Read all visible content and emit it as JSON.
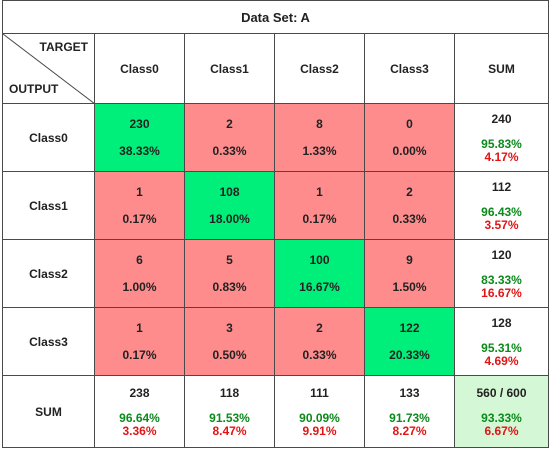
{
  "chart_data": {
    "type": "table",
    "title": "Data Set: A",
    "corner": {
      "target_label": "TARGET",
      "output_label": "OUTPUT"
    },
    "columns": [
      "Class0",
      "Class1",
      "Class2",
      "Class3",
      "SUM"
    ],
    "rows": [
      {
        "label": "Class0",
        "cells": [
          {
            "count": "230",
            "pct": "38.33%"
          },
          {
            "count": "2",
            "pct": "0.33%"
          },
          {
            "count": "8",
            "pct": "1.33%"
          },
          {
            "count": "0",
            "pct": "0.00%"
          }
        ],
        "sum": {
          "count": "240",
          "correct": "95.83%",
          "error": "4.17%"
        }
      },
      {
        "label": "Class1",
        "cells": [
          {
            "count": "1",
            "pct": "0.17%"
          },
          {
            "count": "108",
            "pct": "18.00%"
          },
          {
            "count": "1",
            "pct": "0.17%"
          },
          {
            "count": "2",
            "pct": "0.33%"
          }
        ],
        "sum": {
          "count": "112",
          "correct": "96.43%",
          "error": "3.57%"
        }
      },
      {
        "label": "Class2",
        "cells": [
          {
            "count": "6",
            "pct": "1.00%"
          },
          {
            "count": "5",
            "pct": "0.83%"
          },
          {
            "count": "100",
            "pct": "16.67%"
          },
          {
            "count": "9",
            "pct": "1.50%"
          }
        ],
        "sum": {
          "count": "120",
          "correct": "83.33%",
          "error": "16.67%"
        }
      },
      {
        "label": "Class3",
        "cells": [
          {
            "count": "1",
            "pct": "0.17%"
          },
          {
            "count": "3",
            "pct": "0.50%"
          },
          {
            "count": "2",
            "pct": "0.33%"
          },
          {
            "count": "122",
            "pct": "20.33%"
          }
        ],
        "sum": {
          "count": "128",
          "correct": "95.31%",
          "error": "4.69%"
        }
      }
    ],
    "sum_row": {
      "label": "SUM",
      "cells": [
        {
          "count": "238",
          "correct": "96.64%",
          "error": "3.36%"
        },
        {
          "count": "118",
          "correct": "91.53%",
          "error": "8.47%"
        },
        {
          "count": "111",
          "correct": "90.09%",
          "error": "9.91%"
        },
        {
          "count": "133",
          "correct": "91.73%",
          "error": "8.27%"
        }
      ],
      "total": {
        "count": "560 / 600",
        "correct": "93.33%",
        "error": "6.67%"
      }
    }
  },
  "colors": {
    "diagonal": "#00ee7a",
    "off_diagonal": "#fe8c8c",
    "total_cell": "#d4f7d6",
    "correct_text": "#0b8a1a",
    "error_text": "#e01515",
    "border": "#4a4a4a"
  }
}
